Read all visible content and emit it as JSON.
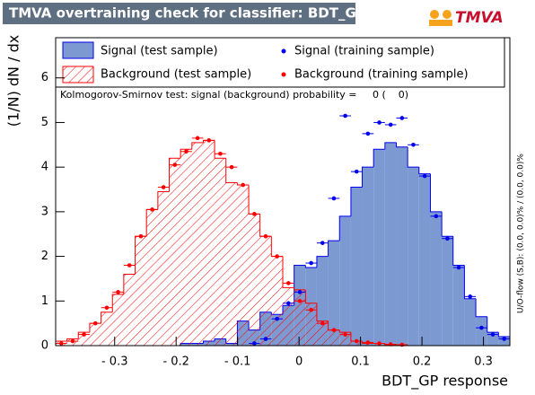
{
  "chart_data": {
    "type": "histogram",
    "title": "TMVA overtraining check for classifier: BDT_GP",
    "logo": "TMVA",
    "x_label": "BDT_GP response",
    "y_label": "(1/N) dN / dx",
    "annotation": "Kolmogorov-Smirnov test: signal (background) probability =     0 (    0)",
    "side_note": "U/O-flow (S,B): (0.0, 0.0)% / (0.0, 0.0)%",
    "bins": [
      -0.396,
      -0.3775,
      -0.3591,
      -0.3406,
      -0.3221,
      -0.3036,
      -0.2852,
      -0.2667,
      -0.2482,
      -0.2297,
      -0.2113,
      -0.1928,
      -0.1743,
      -0.1558,
      -0.1374,
      -0.1189,
      -0.1004,
      -0.0819,
      -0.0635,
      -0.045,
      -0.0265,
      -0.008,
      0.0105,
      0.0289,
      0.0474,
      0.0659,
      0.0844,
      0.1028,
      0.1213,
      0.1398,
      0.1583,
      0.1767,
      0.1952,
      0.2137,
      0.2322,
      0.2506,
      0.2691,
      0.2876,
      0.3061,
      0.3245,
      0.343
    ],
    "series": [
      {
        "name": "Signal (test sample)",
        "style": "filled",
        "color": "#7d99d1",
        "edge_color": "#0000ee",
        "values": [
          0,
          0,
          0,
          0,
          0,
          0,
          0,
          0,
          0,
          0,
          0,
          0.05,
          0.05,
          0.1,
          0.15,
          0.05,
          0.55,
          0.35,
          0.75,
          0.7,
          0.9,
          1.8,
          1.75,
          2.0,
          2.35,
          2.9,
          3.55,
          4.0,
          4.4,
          4.55,
          4.45,
          4.0,
          3.85,
          3.0,
          2.45,
          1.8,
          1.05,
          0.65,
          0.3,
          0.2
        ]
      },
      {
        "name": "Background (test sample)",
        "style": "hatched",
        "color": "#ff0000",
        "edge_color": "#ff0000",
        "values": [
          0.1,
          0.15,
          0.3,
          0.5,
          0.75,
          1.15,
          1.6,
          2.45,
          3.05,
          3.45,
          4.2,
          4.4,
          4.55,
          4.6,
          4.2,
          3.65,
          3.6,
          2.95,
          2.45,
          2.0,
          1.3,
          1.25,
          0.95,
          0.55,
          0.35,
          0.3,
          0.1,
          0.05,
          0.05,
          0.02,
          0.02,
          0,
          0,
          0,
          0,
          0,
          0,
          0,
          0,
          0
        ]
      },
      {
        "name": "Signal (training sample)",
        "style": "markers",
        "color": "#0000ee",
        "values": [
          null,
          null,
          null,
          null,
          null,
          null,
          null,
          null,
          null,
          null,
          null,
          null,
          null,
          null,
          null,
          null,
          null,
          0.05,
          0.15,
          0.6,
          0.95,
          1.2,
          1.85,
          2.3,
          3.3,
          5.15,
          3.9,
          4.75,
          5.0,
          4.95,
          5.1,
          4.5,
          3.8,
          2.9,
          2.4,
          1.75,
          1.1,
          0.4,
          0.25,
          0.15
        ]
      },
      {
        "name": "Background (training sample)",
        "style": "markers",
        "color": "#ff0000",
        "values": [
          0.05,
          0.1,
          0.25,
          0.5,
          0.85,
          1.2,
          1.8,
          2.45,
          3.05,
          3.55,
          4.05,
          4.35,
          4.65,
          4.6,
          4.3,
          4.0,
          3.6,
          2.95,
          2.45,
          2.0,
          1.4,
          1.0,
          0.8,
          0.5,
          0.35,
          0.25,
          0.1,
          0.07,
          0.05,
          0.03,
          0.02,
          null,
          null,
          null,
          null,
          null,
          null,
          null,
          null,
          null
        ]
      }
    ],
    "xlim": [
      -0.396,
      0.343
    ],
    "ylim": [
      0,
      6.9
    ],
    "xticks": [
      {
        "value": -0.3,
        "label": "- 0.3"
      },
      {
        "value": -0.2,
        "label": "- 0.2"
      },
      {
        "value": -0.1,
        "label": "- 0.1"
      },
      0,
      0.1,
      0.2,
      0.3
    ],
    "yticks": [
      0,
      1,
      2,
      3,
      4,
      5,
      6
    ]
  }
}
